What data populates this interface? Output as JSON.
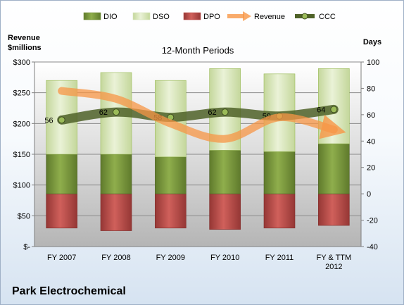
{
  "chart_data": {
    "type": "bar",
    "subtitle": "12-Month Periods",
    "company": "Park Electrochemical",
    "y_left_title": [
      "Revenue",
      "$millions"
    ],
    "y_right_title": "Days",
    "y_left_ticks": [
      "$-",
      "$50",
      "$100",
      "$150",
      "$200",
      "$250",
      "$300"
    ],
    "y_right_ticks": [
      "-40",
      "-20",
      "0",
      "20",
      "40",
      "60",
      "80",
      "100"
    ],
    "ylim_left": [
      0,
      300
    ],
    "ylim_right": [
      -40,
      100
    ],
    "categories": [
      [
        "FY 2007"
      ],
      [
        "FY 2008"
      ],
      [
        "FY 2009"
      ],
      [
        "FY 2010"
      ],
      [
        "FY 2011"
      ],
      [
        "FY & TTM",
        "2012"
      ]
    ],
    "legend": [
      "DIO",
      "DSO",
      "DPO",
      "Revenue",
      "CCC"
    ],
    "series": [
      {
        "name": "DIO",
        "axis": "days",
        "values": [
          30,
          30,
          28,
          33,
          32,
          38
        ]
      },
      {
        "name": "DSO",
        "axis": "days",
        "values": [
          56,
          62,
          58,
          62,
          59,
          57
        ]
      },
      {
        "name": "DPO",
        "axis": "days",
        "values": [
          -26,
          -28,
          -26,
          -27,
          -26,
          -24
        ]
      },
      {
        "name": "Revenue",
        "axis": "revenue",
        "values": [
          253,
          240,
          200,
          175,
          210,
          190
        ]
      },
      {
        "name": "CCC",
        "axis": "days",
        "values": [
          56,
          62,
          58,
          62,
          59,
          64
        ]
      }
    ],
    "ccc_labels": [
      "56",
      "62",
      "58",
      "62",
      "59",
      "64"
    ],
    "colors": {
      "DIO": "#77933c",
      "DSO": "#d7e4bd",
      "DPO": "#c0504d",
      "Revenue": "#f79646",
      "CCC": "#4f6228"
    },
    "grid": true,
    "legend_position": "top"
  }
}
